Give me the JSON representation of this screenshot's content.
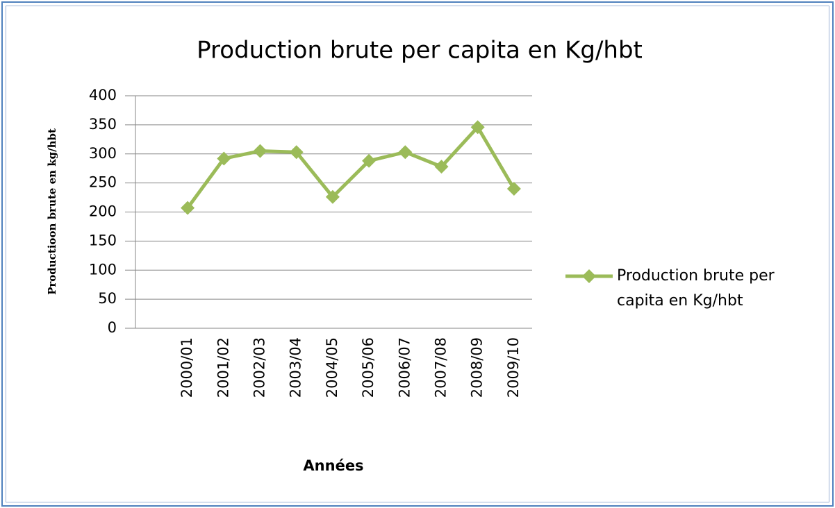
{
  "chart_data": {
    "type": "line",
    "title": "Production brute per capita en Kg/hbt",
    "x_label": "Années",
    "y_label": "Productioon brute en kg/hbt",
    "categories": [
      "2000/01",
      "2001/02",
      "2002/03",
      "2003/04",
      "2004/05",
      "2005/06",
      "2006/07",
      "2007/08",
      "2008/09",
      "2009/10"
    ],
    "series": [
      {
        "name": "Production brute per capita en Kg/hbt",
        "color": "#9bbb59",
        "values": [
          207,
          292,
          305,
          303,
          226,
          288,
          303,
          278,
          346,
          240
        ]
      }
    ],
    "ylim": [
      0,
      400
    ],
    "yticks": [
      0,
      50,
      100,
      150,
      200,
      250,
      300,
      350,
      400
    ],
    "grid": true,
    "legend": "right"
  }
}
